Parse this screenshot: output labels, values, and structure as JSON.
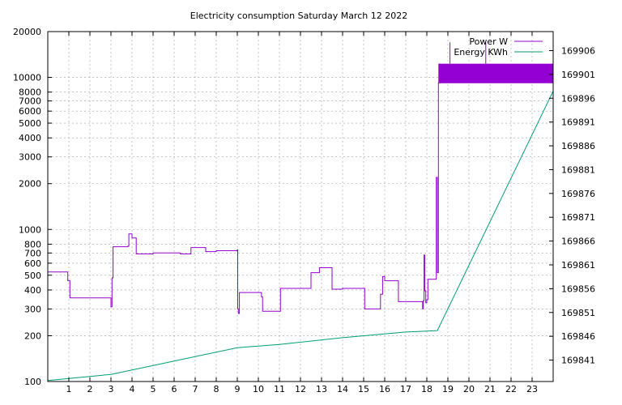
{
  "chart_data": {
    "type": "line",
    "title": "Electricity consumption Saturday March 12 2022",
    "xlabel": "",
    "ylabel": "",
    "y2label": "",
    "x_ticks": [
      "1",
      "2",
      "3",
      "4",
      "5",
      "6",
      "7",
      "8",
      "9",
      "10",
      "11",
      "12",
      "13",
      "14",
      "15",
      "16",
      "17",
      "18",
      "19",
      "20",
      "21",
      "22",
      "23"
    ],
    "xlim": [
      0,
      24
    ],
    "y_left": {
      "scale": "log",
      "lim": [
        100,
        20000
      ],
      "ticks": [
        100,
        200,
        300,
        400,
        500,
        600,
        700,
        800,
        1000,
        2000,
        3000,
        4000,
        5000,
        6000,
        7000,
        8000,
        10000,
        20000
      ],
      "tick_labels": [
        "100",
        "200",
        "300",
        "400",
        "500",
        "600",
        "700",
        "800",
        "1000",
        "2000",
        "3000",
        "4000",
        "5000",
        "6000",
        "7000",
        "8000",
        "10000",
        "20000"
      ]
    },
    "y_right": {
      "scale": "linear",
      "lim": [
        169836.5,
        169910
      ],
      "ticks": [
        169841,
        169846,
        169851,
        169856,
        169861,
        169866,
        169871,
        169876,
        169881,
        169886,
        169891,
        169896,
        169901,
        169906
      ],
      "tick_labels": [
        "169841",
        "169846",
        "169851",
        "169856",
        "169861",
        "169866",
        "169871",
        "169876",
        "169881",
        "169886",
        "169891",
        "169896",
        "169901",
        "169906"
      ]
    },
    "grid": true,
    "legend_position": "top-right",
    "series": [
      {
        "name": "Power W",
        "axis": "left",
        "color": "#9400d3",
        "step": true,
        "x": [
          0,
          0.8,
          0.95,
          1.05,
          2.3,
          3.0,
          3.05,
          3.1,
          3.8,
          3.85,
          4.0,
          4.2,
          5.0,
          6.0,
          6.3,
          6.8,
          7.5,
          8.0,
          8.5,
          9.0,
          9.02,
          9.05,
          9.1,
          10.0,
          10.15,
          10.2,
          11.0,
          11.05,
          12.0,
          12.5,
          12.9,
          13.5,
          14.0,
          15.0,
          15.05,
          15.25,
          15.8,
          15.9,
          16.0,
          16.6,
          16.65,
          17.5,
          17.8,
          17.83,
          17.87,
          17.9,
          17.95,
          18.0,
          18.05,
          18.4,
          18.45,
          18.5,
          18.55,
          24.0
        ],
        "values": [
          525,
          525,
          460,
          355,
          355,
          310,
          480,
          770,
          775,
          935,
          880,
          690,
          700,
          700,
          690,
          760,
          715,
          725,
          725,
          735,
          300,
          280,
          385,
          385,
          360,
          290,
          290,
          410,
          410,
          520,
          560,
          405,
          410,
          410,
          300,
          300,
          375,
          490,
          460,
          460,
          335,
          335,
          300,
          340,
          680,
          395,
          330,
          345,
          470,
          470,
          2200,
          520,
          9200,
          9200
        ]
      },
      {
        "name": "Energy KWh",
        "axis": "right",
        "color": "#009e73",
        "step": false,
        "x": [
          0,
          3,
          6,
          9,
          11,
          14,
          17,
          18.5,
          24
        ],
        "values": [
          169836.7,
          169838.0,
          169840.8,
          169843.6,
          169844.3,
          169845.7,
          169846.9,
          169847.2,
          169897.5
        ]
      }
    ],
    "power_noise_band": {
      "x": [
        18.55,
        24
      ],
      "y": [
        9200,
        12300
      ],
      "color": "#9400d3"
    },
    "power_spikes": {
      "x": [
        19.1,
        20.8
      ],
      "values": [
        17000,
        17000
      ]
    }
  }
}
